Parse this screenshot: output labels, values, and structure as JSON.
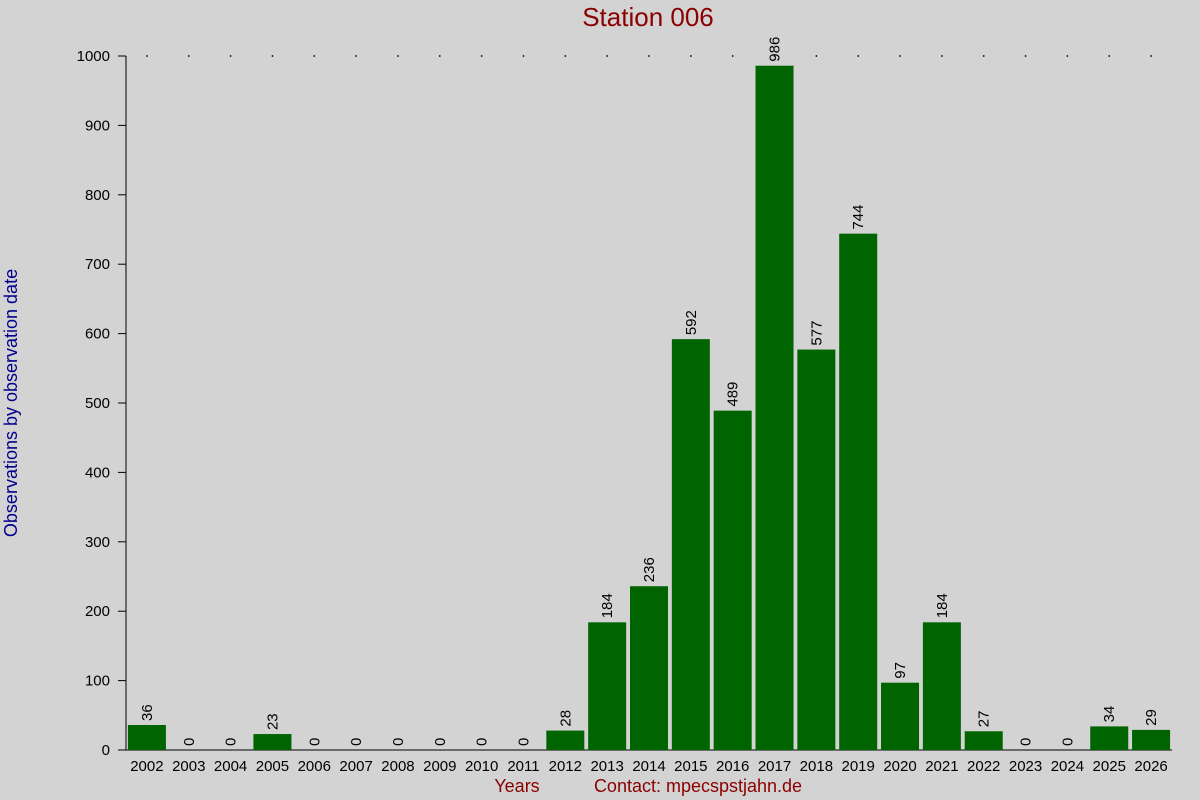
{
  "chart_data": {
    "type": "bar",
    "title": "Station 006",
    "xlabel": "Years",
    "ylabel": "Observations by observation date",
    "contact": "Contact: mpecspstjahn.de",
    "categories": [
      "2002",
      "2003",
      "2004",
      "2005",
      "2006",
      "2007",
      "2008",
      "2009",
      "2010",
      "2011",
      "2012",
      "2013",
      "2014",
      "2015",
      "2016",
      "2017",
      "2018",
      "2019",
      "2020",
      "2021",
      "2022",
      "2023",
      "2024",
      "2025",
      "2026"
    ],
    "values": [
      36,
      0,
      0,
      23,
      0,
      0,
      0,
      0,
      0,
      0,
      28,
      184,
      236,
      592,
      489,
      986,
      577,
      744,
      97,
      184,
      27,
      0,
      0,
      34,
      29
    ],
    "yticks": [
      0,
      100,
      200,
      300,
      400,
      500,
      600,
      700,
      800,
      900,
      1000
    ],
    "ylim": [
      0,
      1000
    ],
    "grid": false,
    "bar_color": "#006400",
    "background_color": "#d3d3d3",
    "title_color": "#8b0000",
    "ylabel_color": "#00008b",
    "xlabel_color": "#8b0000"
  }
}
